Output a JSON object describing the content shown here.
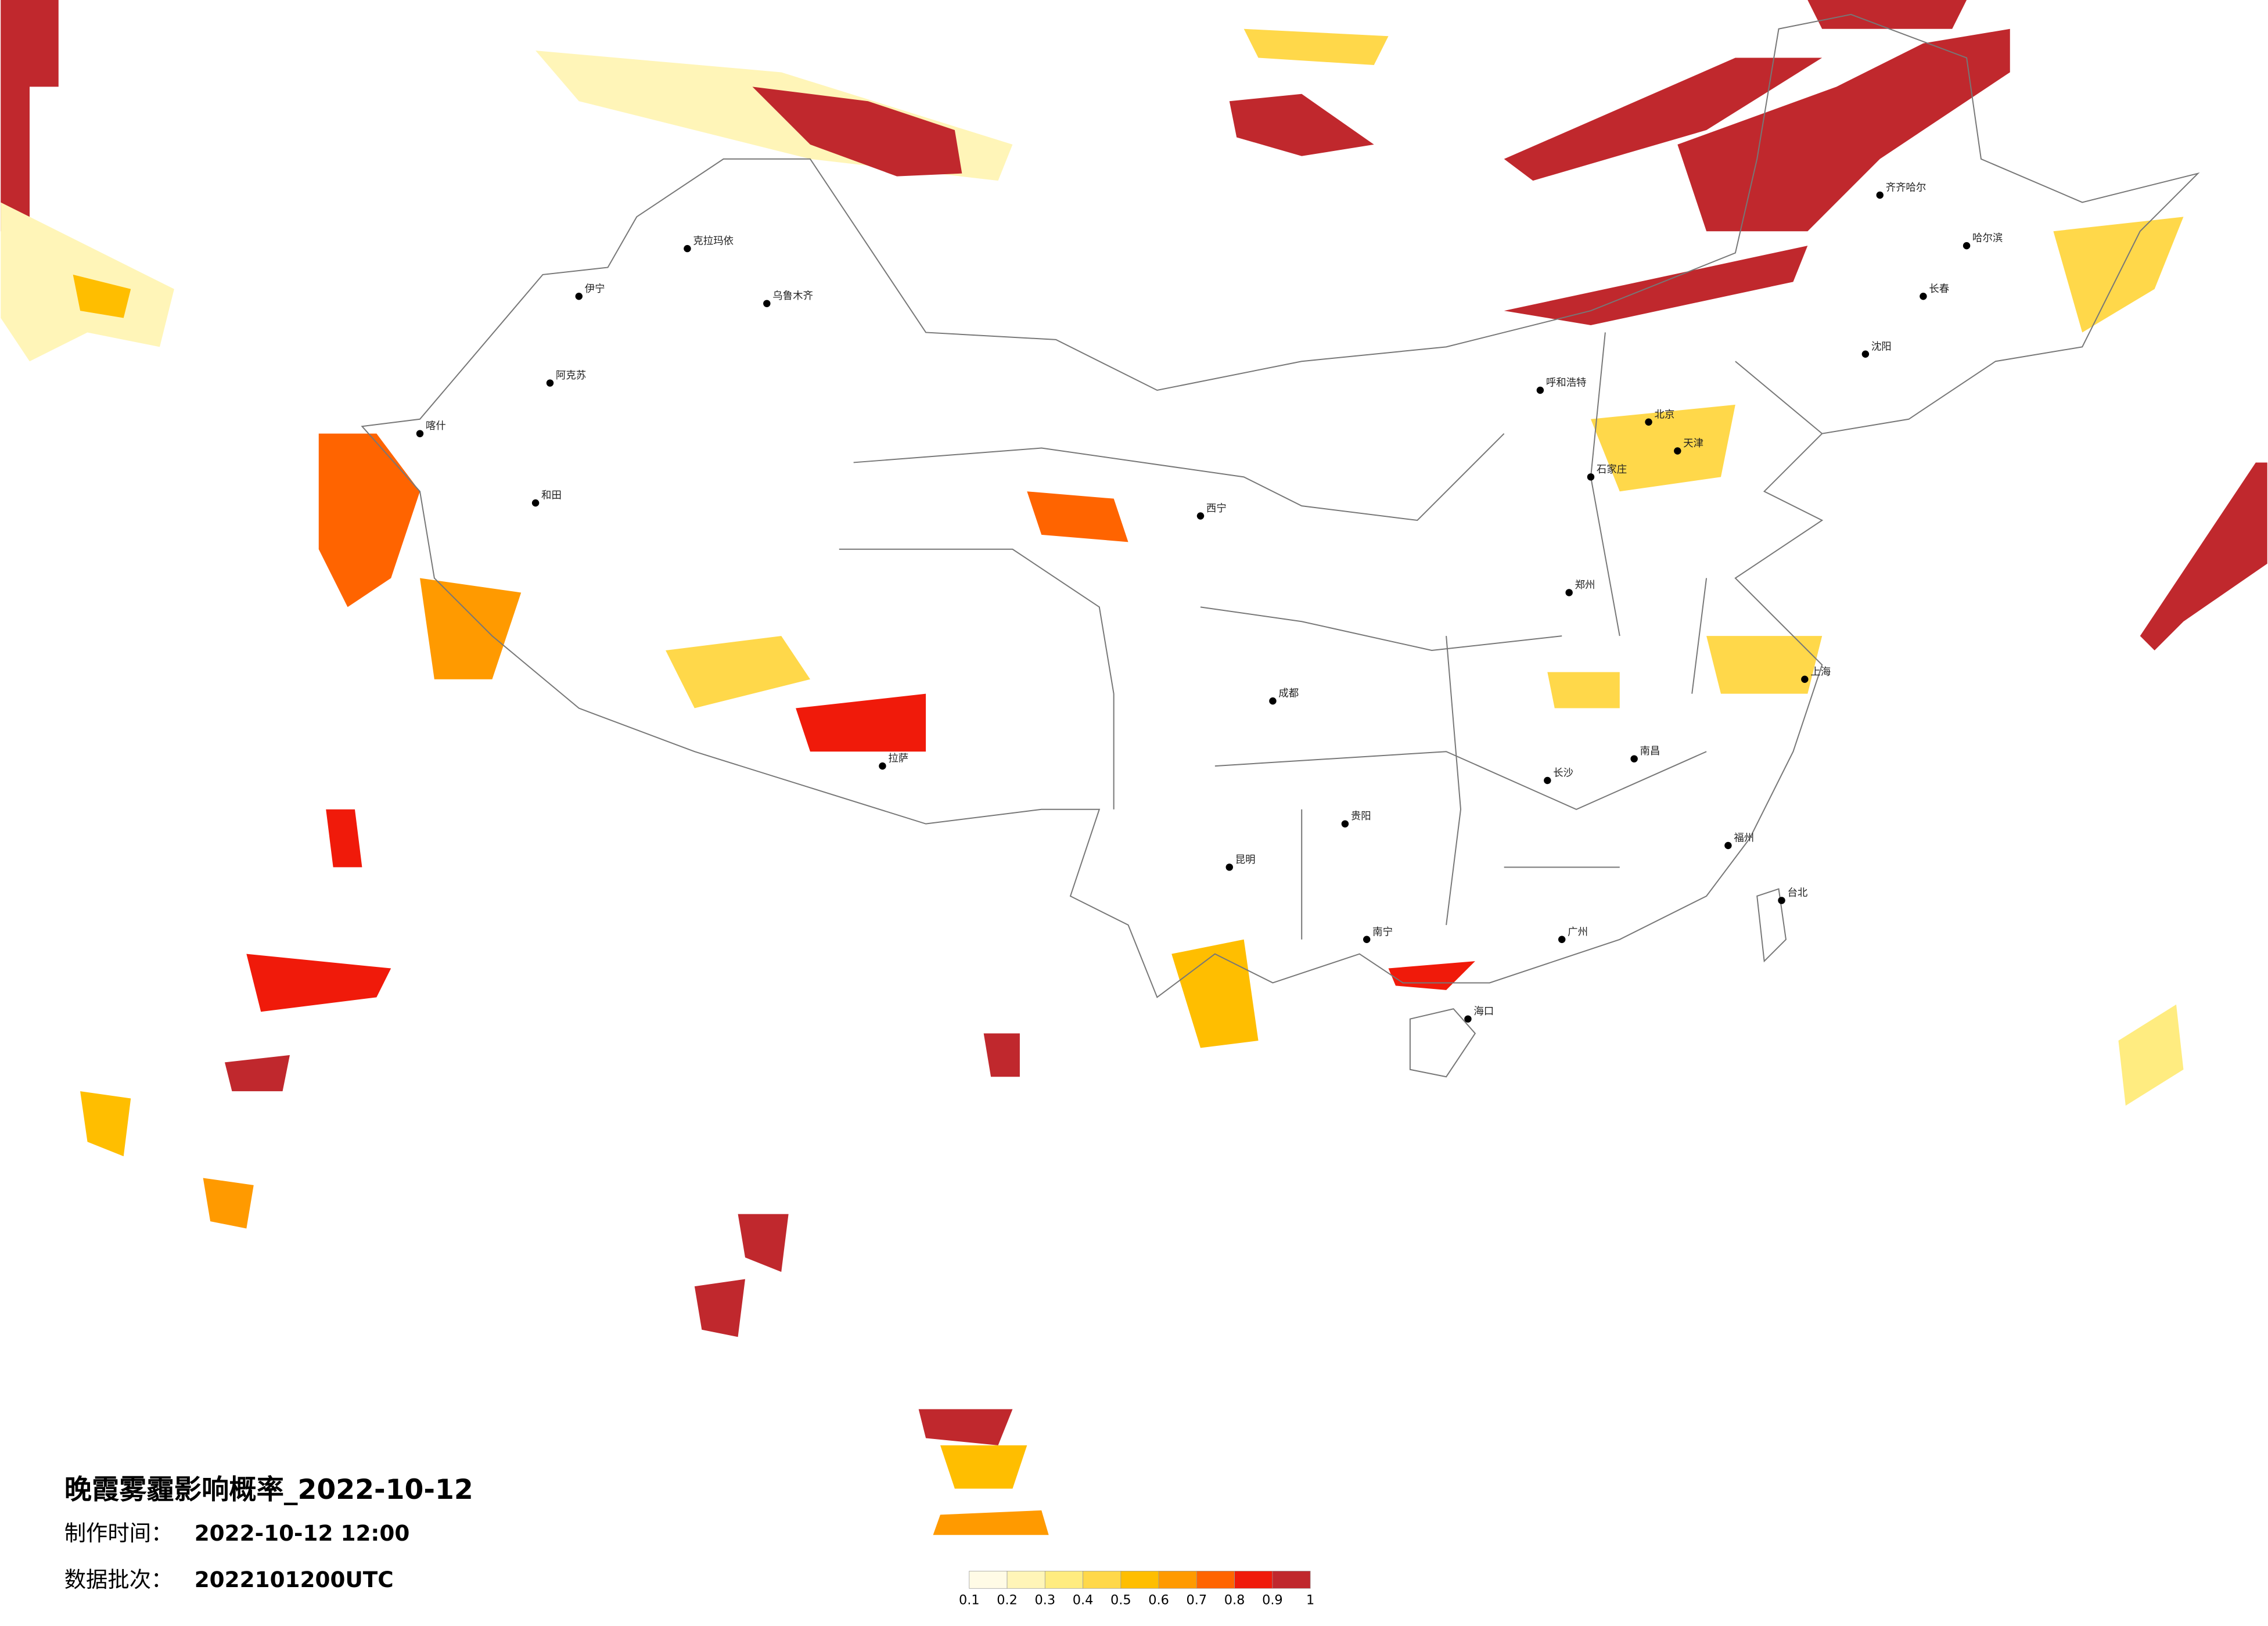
{
  "title": "晚霞雾霾影响概率_2022-10-12",
  "production_time": {
    "label": "制作时间：",
    "value": "2022-10-12 12:00"
  },
  "data_batch": {
    "label": "数据批次：",
    "value": "2022101200UTC"
  },
  "legend": {
    "ticks": [
      0.1,
      0.2,
      0.3,
      0.4,
      0.5,
      0.6,
      0.7,
      0.8,
      0.9,
      1
    ],
    "colors": [
      "#fffbe6",
      "#fff5b8",
      "#ffec80",
      "#ffd84a",
      "#ffbe00",
      "#ff9a00",
      "#ff6400",
      "#f01a0a",
      "#c0282d"
    ]
  },
  "cities": [
    "克拉玛依",
    "乌鲁木齐",
    "伊宁",
    "阿克苏",
    "喀什",
    "和田",
    "拉萨",
    "西宁",
    "呼和浩特",
    "北京",
    "天津",
    "石家庄",
    "郑州",
    "成都",
    "长沙",
    "南昌",
    "上海",
    "福州",
    "广州",
    "南宁",
    "昆明",
    "贵阳",
    "海口",
    "台北",
    "哈尔滨",
    "长春",
    "沈阳",
    "齐齐哈尔"
  ]
}
